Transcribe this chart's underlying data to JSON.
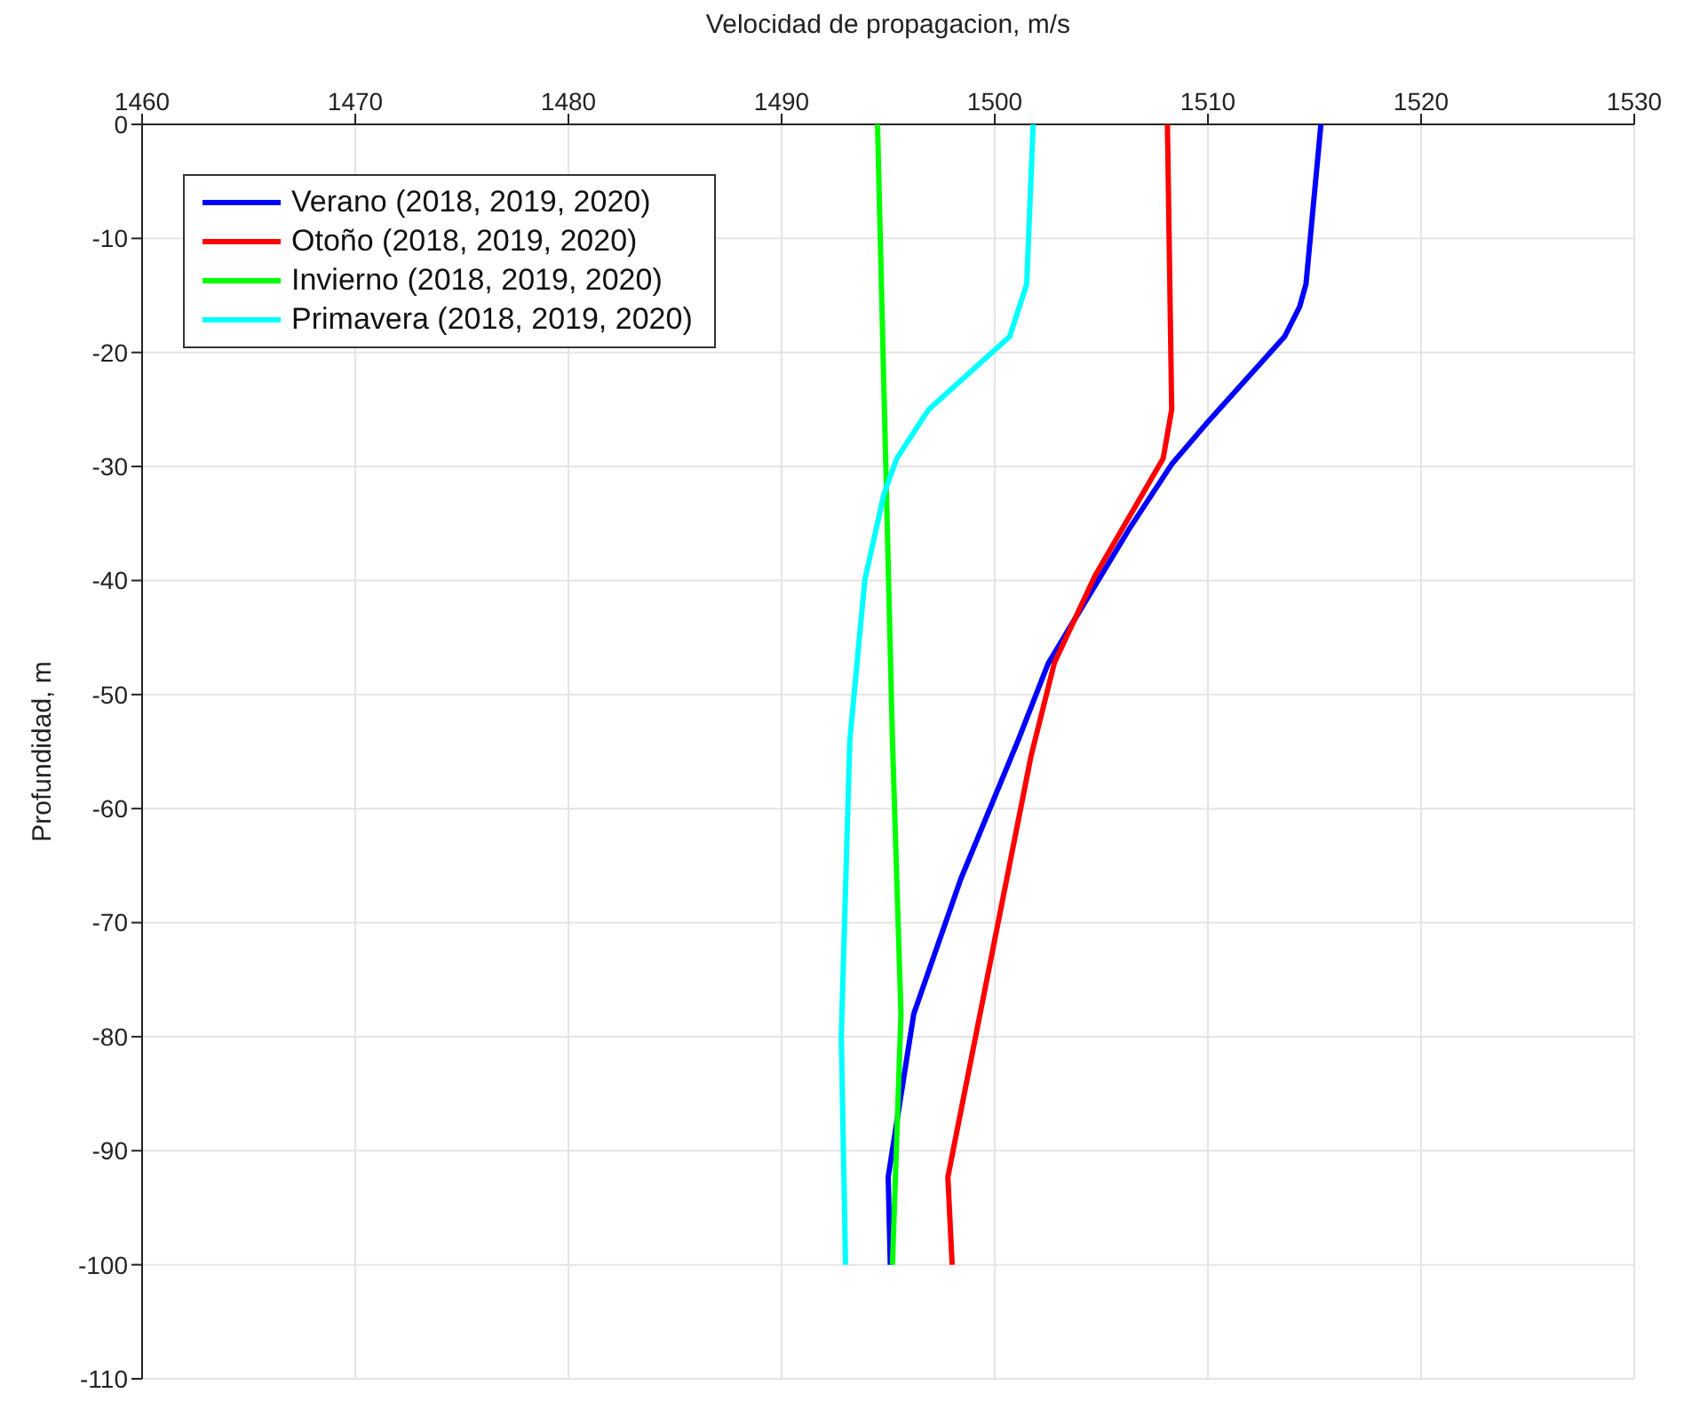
{
  "chart_data": {
    "type": "line",
    "xlabel": "Velocidad de propagacion, m/s",
    "ylabel": "Profundidad, m",
    "xlim": [
      1460,
      1530
    ],
    "xticks": [
      1460,
      1470,
      1480,
      1490,
      1500,
      1510,
      1520,
      1530
    ],
    "ylim": [
      -110,
      0
    ],
    "yticks": [
      -110,
      -100,
      -90,
      -80,
      -70,
      -60,
      -50,
      -40,
      -30,
      -20,
      -10,
      0
    ],
    "grid": true,
    "legend": "top left",
    "series": [
      {
        "name": "Verano (2018, 2019, 2020)",
        "color": "#0000ff",
        "x": [
          1515.3,
          1514.6,
          1514.3,
          1513.6,
          1509.9,
          1508.3,
          1506.3,
          1504.2,
          1502.5,
          1501.1,
          1498.4,
          1496.2,
          1495,
          1495.1
        ],
        "values": [
          0,
          -14,
          -16,
          -18.6,
          -26.3,
          -29.8,
          -35.5,
          -42,
          -47.3,
          -54,
          -66.2,
          -78,
          -92.3,
          -100
        ]
      },
      {
        "name": "Otoño (2018, 2019, 2020)",
        "color": "#ff0000",
        "x": [
          1508.1,
          1508.3,
          1507.9,
          1504.7,
          1502.8,
          1501.7,
          1497.8,
          1498
        ],
        "values": [
          0,
          -25,
          -29.3,
          -39.6,
          -47.2,
          -55.4,
          -92.3,
          -100
        ]
      },
      {
        "name": "Invierno (2018, 2019, 2020)",
        "color": "#00ff00",
        "x": [
          1494.5,
          1495.2,
          1495.6,
          1495.2
        ],
        "values": [
          0,
          -54,
          -78,
          -100
        ]
      },
      {
        "name": "Primavera (2018, 2019, 2020)",
        "color": "#00ffff",
        "x": [
          1501.8,
          1501.5,
          1500.7,
          1496.9,
          1495.4,
          1494.8,
          1493.9,
          1493.2,
          1492.8,
          1493
        ],
        "values": [
          0,
          -14,
          -18.6,
          -25,
          -29.3,
          -32.4,
          -40,
          -54,
          -80,
          -100
        ]
      }
    ]
  }
}
